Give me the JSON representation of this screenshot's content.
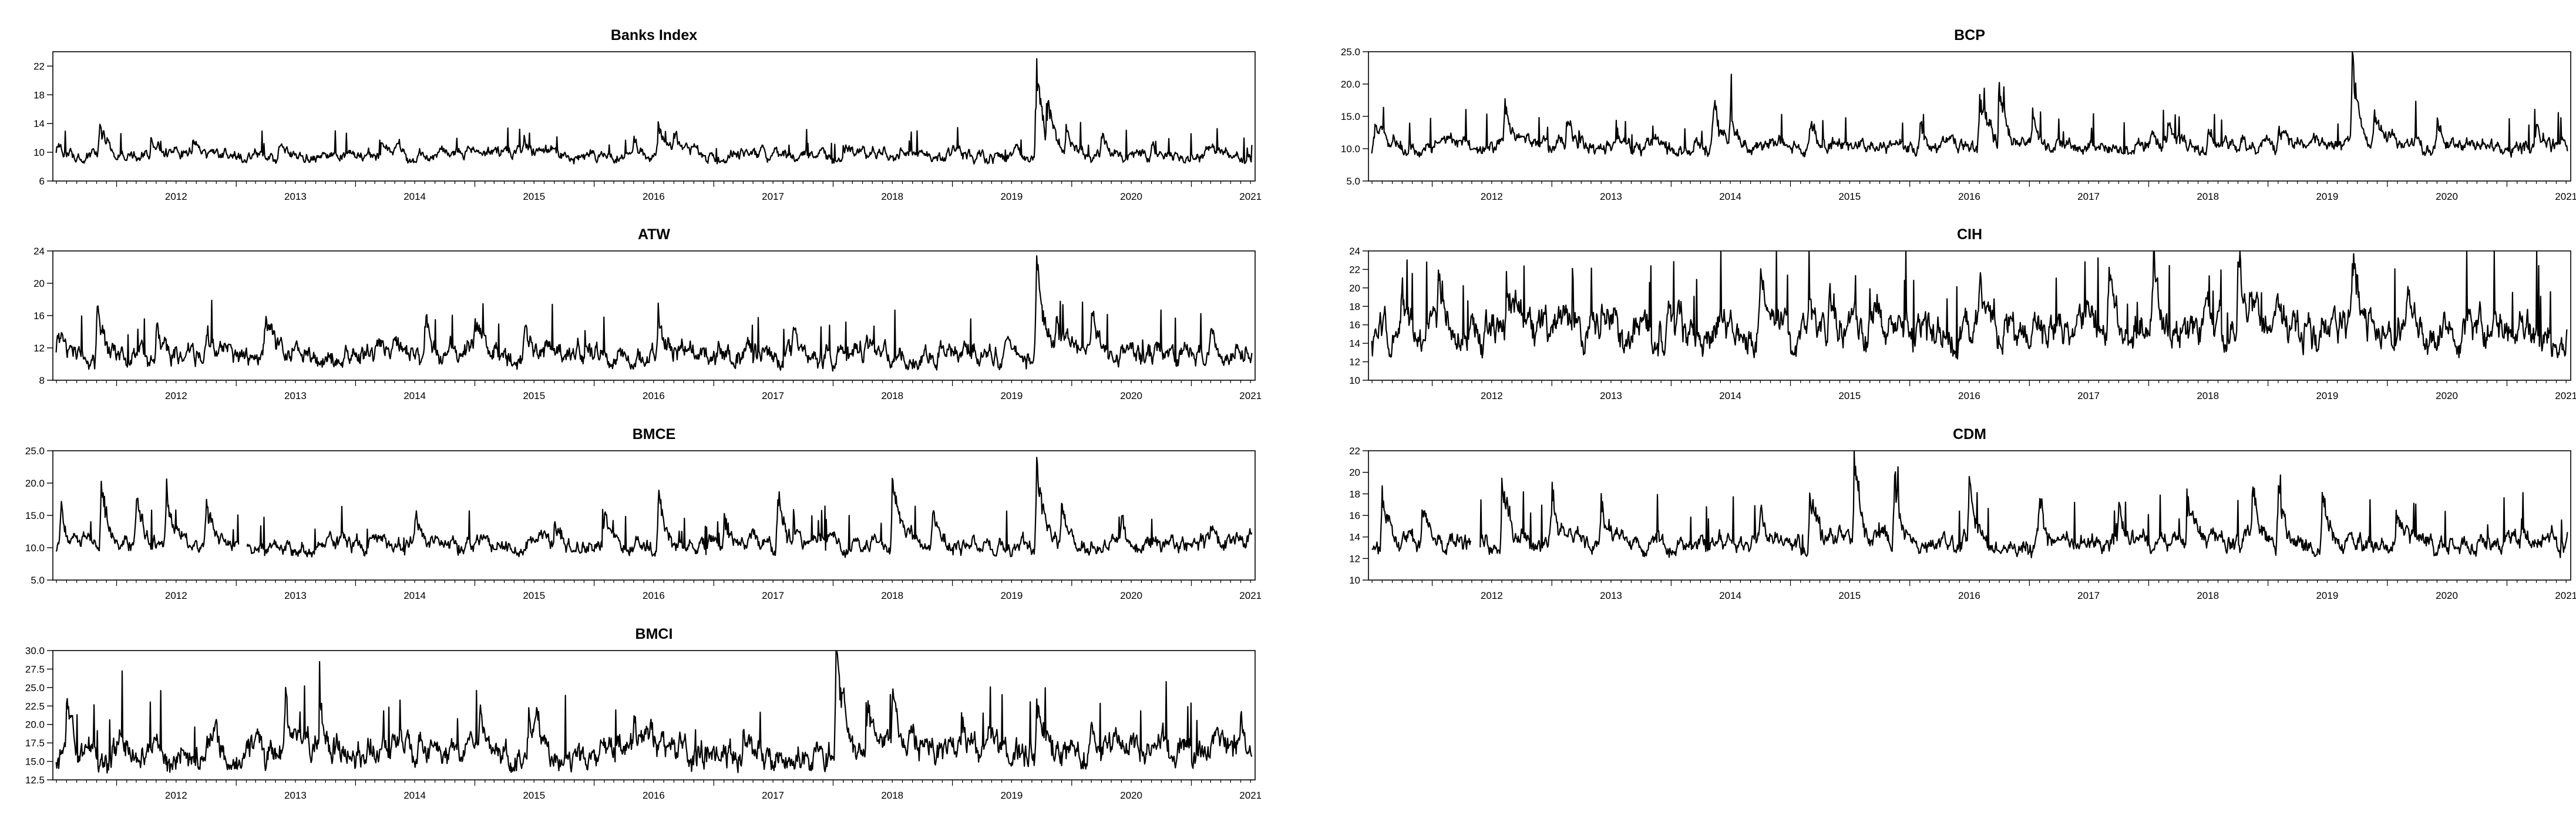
{
  "chart_data": [
    {
      "type": "line",
      "title": "Banks Index",
      "x_tick_labels": [
        "2012",
        "2013",
        "2014",
        "2015",
        "2016",
        "2017",
        "2018",
        "2019",
        "2020",
        "2021"
      ],
      "y_tick_labels": [
        "6",
        "10",
        "14",
        "18",
        "22"
      ],
      "ylim": [
        6,
        24
      ],
      "xlim": [
        "2011-06-20",
        "2021-07-15"
      ],
      "grid": false,
      "color": "#000000",
      "series": [
        {
          "baseline": 8.3,
          "noise": 0.9,
          "spikes": [
            [
              "2011-07-01",
              1.8
            ],
            [
              "2011-11-10",
              4.8
            ],
            [
              "2012-04-15",
              2.5
            ],
            [
              "2012-08-20",
              2.2
            ],
            [
              "2013-05-10",
              1.5
            ],
            [
              "2014-03-20",
              1.8
            ],
            [
              "2014-09-15",
              2.0
            ],
            [
              "2015-06-01",
              2.0
            ],
            [
              "2016-05-01",
              1.8
            ],
            [
              "2016-07-15",
              4.2
            ],
            [
              "2016-09-01",
              3.2
            ],
            [
              "2018-02-01",
              1.8
            ],
            [
              "2019-09-15",
              13.5
            ],
            [
              "2019-10-20",
              6.0
            ],
            [
              "2019-12-15",
              4.0
            ],
            [
              "2020-04-01",
              3.0
            ],
            [
              "2020-09-01",
              2.5
            ],
            [
              "2021-02-15",
              2.0
            ]
          ]
        }
      ]
    },
    {
      "type": "line",
      "title": "BCP",
      "x_tick_labels": [
        "2012",
        "2013",
        "2014",
        "2015",
        "2016",
        "2017",
        "2018",
        "2019",
        "2020",
        "2021"
      ],
      "y_tick_labels": [
        "5.0",
        "10.0",
        "15.0",
        "20.0",
        "25.0"
      ],
      "ylim": [
        5,
        25
      ],
      "xlim": [
        "2011-06-20",
        "2021-07-15"
      ],
      "grid": false,
      "color": "#000000",
      "series": [
        {
          "baseline": 8.6,
          "noise": 1.3,
          "spikes": [
            [
              "2011-07-10",
              3.2
            ],
            [
              "2012-08-10",
              8.5
            ],
            [
              "2013-02-15",
              4.5
            ],
            [
              "2014-05-10",
              7.5
            ],
            [
              "2014-07-01",
              6.0
            ],
            [
              "2015-03-01",
              4.5
            ],
            [
              "2016-02-01",
              5.0
            ],
            [
              "2016-08-01",
              8.5
            ],
            [
              "2016-10-01",
              9.5
            ],
            [
              "2017-01-10",
              6.0
            ],
            [
              "2018-03-01",
              4.5
            ],
            [
              "2018-07-01",
              4.0
            ],
            [
              "2019-02-01",
              3.5
            ],
            [
              "2019-09-15",
              15.5
            ],
            [
              "2019-11-20",
              5.5
            ],
            [
              "2020-06-01",
              4.5
            ],
            [
              "2021-04-01",
              3.5
            ]
          ]
        }
      ]
    },
    {
      "type": "line",
      "title": "ATW",
      "x_tick_labels": [
        "2012",
        "2013",
        "2014",
        "2015",
        "2016",
        "2017",
        "2018",
        "2019",
        "2020",
        "2021"
      ],
      "y_tick_labels": [
        "8",
        "12",
        "16",
        "20",
        "24"
      ],
      "ylim": [
        8,
        24
      ],
      "xlim": [
        "2011-06-20",
        "2021-07-15"
      ],
      "grid": false,
      "color": "#000000",
      "series": [
        {
          "baseline": 9.1,
          "noise": 1.5,
          "spikes": [
            [
              "2011-07-01",
              2.5
            ],
            [
              "2011-11-01",
              5.8
            ],
            [
              "2012-05-01",
              4.5
            ],
            [
              "2012-10-01",
              4.0
            ],
            [
              "2013-04-01",
              5.5
            ],
            [
              "2014-08-01",
              4.0
            ],
            [
              "2015-01-01",
              5.0
            ],
            [
              "2015-06-01",
              5.0
            ],
            [
              "2016-07-15",
              6.0
            ],
            [
              "2017-09-01",
              3.5
            ],
            [
              "2019-09-15",
              14.0
            ],
            [
              "2019-11-15",
              5.5
            ],
            [
              "2020-03-01",
              4.0
            ],
            [
              "2021-03-01",
              3.0
            ]
          ]
        }
      ]
    },
    {
      "type": "line",
      "title": "CIH",
      "x_tick_labels": [
        "2012",
        "2013",
        "2014",
        "2015",
        "2016",
        "2017",
        "2018",
        "2019",
        "2020",
        "2021"
      ],
      "y_tick_labels": [
        "10",
        "12",
        "14",
        "16",
        "18",
        "20",
        "22",
        "24"
      ],
      "ylim": [
        10,
        24
      ],
      "xlim": [
        "2011-06-20",
        "2021-07-15"
      ],
      "grid": false,
      "color": "#000000",
      "series": [
        {
          "baseline": 12.2,
          "noise": 2.2,
          "spikes": [
            [
              "2011-10-01",
              4.5
            ],
            [
              "2012-01-20",
              7.5
            ],
            [
              "2012-08-15",
              8.5
            ],
            [
              "2013-06-01",
              4.5
            ],
            [
              "2014-10-01",
              7.0
            ],
            [
              "2015-05-01",
              6.5
            ],
            [
              "2015-09-01",
              6.0
            ],
            [
              "2016-08-01",
              4.5
            ],
            [
              "2017-09-01",
              6.5
            ],
            [
              "2018-01-15",
              9.0
            ],
            [
              "2018-10-01",
              9.5
            ],
            [
              "2019-09-15",
              11.5
            ],
            [
              "2020-03-01",
              4.5
            ]
          ]
        }
      ]
    },
    {
      "type": "line",
      "title": "BMCE",
      "x_tick_labels": [
        "2012",
        "2013",
        "2014",
        "2015",
        "2016",
        "2017",
        "2018",
        "2019",
        "2020",
        "2021"
      ],
      "y_tick_labels": [
        "5.0",
        "10.0",
        "15.0",
        "20.0",
        "25.0"
      ],
      "ylim": [
        5,
        25
      ],
      "xlim": [
        "2011-06-20",
        "2021-07-15"
      ],
      "grid": false,
      "color": "#000000",
      "series": [
        {
          "baseline": 8.5,
          "noise": 1.4,
          "gaps": [
            [
              "2013-01-10",
              "2013-02-01"
            ]
          ],
          "spikes": [
            [
              "2011-07-15",
              7.0
            ],
            [
              "2011-11-15",
              11.5
            ],
            [
              "2012-03-01",
              8.0
            ],
            [
              "2012-06-01",
              8.5
            ],
            [
              "2012-10-01",
              7.0
            ],
            [
              "2014-07-01",
              4.5
            ],
            [
              "2015-09-01",
              4.5
            ],
            [
              "2016-02-01",
              6.0
            ],
            [
              "2016-07-15",
              8.5
            ],
            [
              "2017-02-01",
              6.0
            ],
            [
              "2017-07-15",
              10.5
            ],
            [
              "2018-07-01",
              13.5
            ],
            [
              "2018-11-01",
              6.0
            ],
            [
              "2019-09-15",
              15.5
            ],
            [
              "2019-12-01",
              7.0
            ],
            [
              "2020-06-01",
              5.0
            ],
            [
              "2021-03-01",
              3.0
            ]
          ]
        }
      ]
    },
    {
      "type": "line",
      "title": "CDM",
      "x_tick_labels": [
        "2012",
        "2013",
        "2014",
        "2015",
        "2016",
        "2017",
        "2018",
        "2019",
        "2020",
        "2021"
      ],
      "y_tick_labels": [
        "10",
        "12",
        "14",
        "16",
        "18",
        "20",
        "22"
      ],
      "ylim": [
        10,
        22
      ],
      "xlim": [
        "2011-06-20",
        "2021-07-15"
      ],
      "grid": false,
      "color": "#000000",
      "series": [
        {
          "baseline": 12.0,
          "noise": 1.0,
          "gaps": [
            [
              "2012-05-01",
              "2012-05-25"
            ]
          ],
          "spikes": [
            [
              "2011-08-01",
              5.0
            ],
            [
              "2011-12-01",
              4.0
            ],
            [
              "2012-08-01",
              6.5
            ],
            [
              "2013-01-01",
              5.5
            ],
            [
              "2013-06-01",
              4.5
            ],
            [
              "2014-10-01",
              4.0
            ],
            [
              "2015-03-01",
              5.0
            ],
            [
              "2015-07-15",
              8.5
            ],
            [
              "2015-11-15",
              8.0
            ],
            [
              "2016-07-01",
              6.0
            ],
            [
              "2017-02-01",
              4.5
            ],
            [
              "2017-10-01",
              4.5
            ],
            [
              "2018-05-01",
              4.0
            ],
            [
              "2018-11-15",
              5.0
            ],
            [
              "2019-02-01",
              6.5
            ],
            [
              "2019-06-15",
              5.5
            ],
            [
              "2020-02-01",
              2.5
            ],
            [
              "2021-02-15",
              2.5
            ]
          ]
        }
      ]
    },
    {
      "type": "line",
      "title": "BMCI",
      "x_tick_labels": [
        "2012",
        "2013",
        "2014",
        "2015",
        "2016",
        "2017",
        "2018",
        "2019",
        "2020",
        "2021"
      ],
      "y_tick_labels": [
        "12.5",
        "15.0",
        "17.5",
        "20.0",
        "22.5",
        "25.0",
        "27.5",
        "30.0"
      ],
      "ylim": [
        12.5,
        30
      ],
      "xlim": [
        "2011-06-20",
        "2021-07-15"
      ],
      "grid": false,
      "color": "#000000",
      "series": [
        {
          "baseline": 13.4,
          "noise": 2.2,
          "spikes": [
            [
              "2011-08-01",
              4.0
            ],
            [
              "2012-10-01",
              3.5
            ],
            [
              "2013-06-01",
              6.5
            ],
            [
              "2013-09-15",
              5.5
            ],
            [
              "2015-01-15",
              5.5
            ],
            [
              "2015-06-15",
              5.5
            ],
            [
              "2016-05-01",
              4.5
            ],
            [
              "2017-04-01",
              4.5
            ],
            [
              "2018-01-10",
              16.0
            ],
            [
              "2018-04-15",
              8.0
            ],
            [
              "2018-07-01",
              7.0
            ],
            [
              "2019-02-01",
              4.0
            ],
            [
              "2019-09-15",
              8.5
            ],
            [
              "2020-03-01",
              3.5
            ],
            [
              "2020-09-01",
              3.5
            ],
            [
              "2021-06-01",
              3.0
            ]
          ]
        }
      ]
    }
  ]
}
